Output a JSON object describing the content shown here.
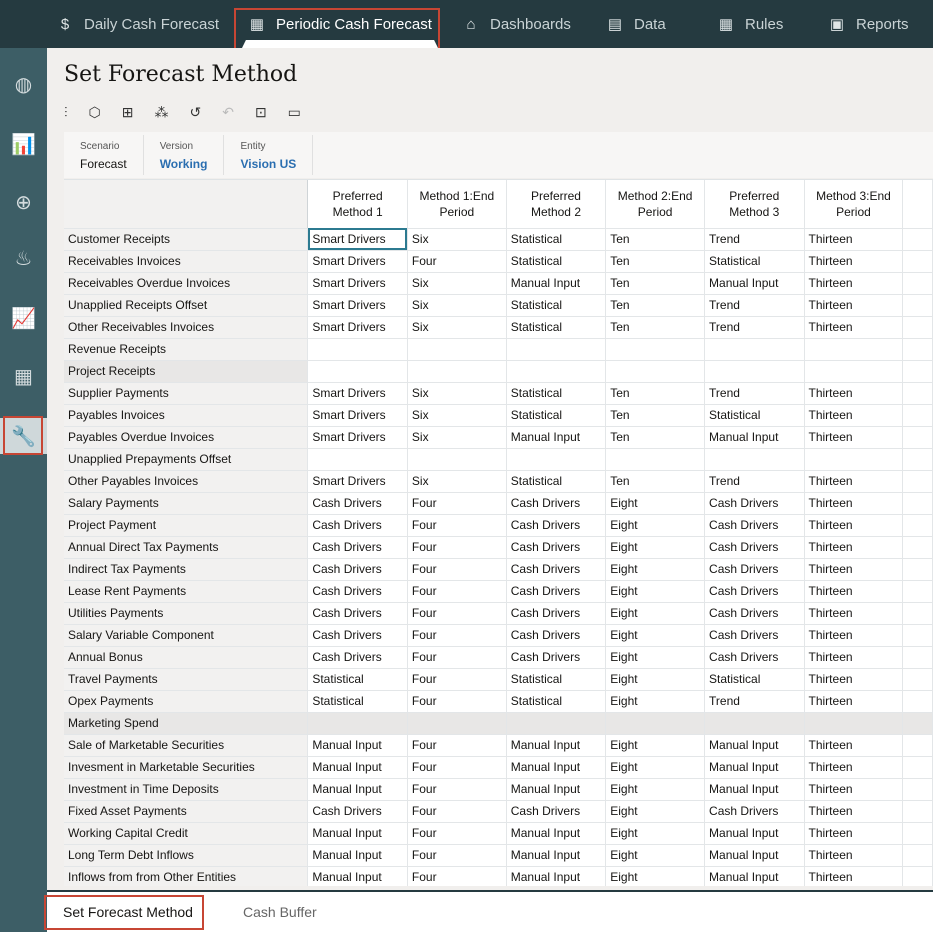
{
  "nav": [
    {
      "label": "Daily Cash Forecast",
      "icon": "dollar-cycle-icon"
    },
    {
      "label": "Periodic Cash Forecast",
      "icon": "calendar-dollar-icon",
      "active": true
    },
    {
      "label": "Dashboards",
      "icon": "monitor-chart-icon"
    },
    {
      "label": "Data",
      "icon": "list-icon"
    },
    {
      "label": "Rules",
      "icon": "calculator-icon"
    },
    {
      "label": "Reports",
      "icon": "report-icon"
    }
  ],
  "sidebar": [
    "globe-dollar-icon",
    "bar-chart-icon",
    "target-icon",
    "hand-money-icon",
    "line-chart-icon",
    "grid-icon",
    "wrench-settings-icon"
  ],
  "page_title": "Set Forecast Method",
  "toolbar": [
    "sliders-icon",
    "cube-icon",
    "comment-add-icon",
    "hierarchy-icon",
    "history-icon",
    "undo-icon",
    "cell-grid-icon",
    "panel-icon"
  ],
  "pov": [
    {
      "label": "Scenario",
      "value": "Forecast"
    },
    {
      "label": "Version",
      "value": "Working"
    },
    {
      "label": "Entity",
      "value": "Vision US"
    }
  ],
  "columns": [
    "Preferred Method 1",
    "Method 1:End Period",
    "Preferred Method 2",
    "Method 2:End Period",
    "Preferred Method 3",
    "Method 3:End Period"
  ],
  "rows": [
    [
      "Customer Receipts",
      "Smart Drivers",
      "Six",
      "Statistical",
      "Ten",
      "Trend",
      "Thirteen"
    ],
    [
      "Receivables Invoices",
      "Smart Drivers",
      "Four",
      "Statistical",
      "Ten",
      "Statistical",
      "Thirteen"
    ],
    [
      "Receivables Overdue Invoices",
      "Smart Drivers",
      "Six",
      "Manual Input",
      "Ten",
      "Manual Input",
      "Thirteen"
    ],
    [
      "Unapplied Receipts Offset",
      "Smart Drivers",
      "Six",
      "Statistical",
      "Ten",
      "Trend",
      "Thirteen"
    ],
    [
      "Other Receivables Invoices",
      "Smart Drivers",
      "Six",
      "Statistical",
      "Ten",
      "Trend",
      "Thirteen"
    ],
    [
      "Revenue Receipts",
      "",
      "",
      "",
      "",
      "",
      ""
    ],
    [
      "Project Receipts",
      "",
      "",
      "",
      "",
      "",
      ""
    ],
    [
      "Supplier Payments",
      "Smart Drivers",
      "Six",
      "Statistical",
      "Ten",
      "Trend",
      "Thirteen"
    ],
    [
      "Payables Invoices",
      "Smart Drivers",
      "Six",
      "Statistical",
      "Ten",
      "Statistical",
      "Thirteen"
    ],
    [
      "Payables Overdue Invoices",
      "Smart Drivers",
      "Six",
      "Manual Input",
      "Ten",
      "Manual Input",
      "Thirteen"
    ],
    [
      "Unapplied Prepayments Offset",
      "",
      "",
      "",
      "",
      "",
      ""
    ],
    [
      "Other Payables Invoices",
      "Smart Drivers",
      "Six",
      "Statistical",
      "Ten",
      "Trend",
      "Thirteen"
    ],
    [
      "Salary Payments",
      "Cash Drivers",
      "Four",
      "Cash Drivers",
      "Eight",
      "Cash Drivers",
      "Thirteen"
    ],
    [
      "Project Payment",
      "Cash Drivers",
      "Four",
      "Cash Drivers",
      "Eight",
      "Cash Drivers",
      "Thirteen"
    ],
    [
      "Annual Direct Tax Payments",
      "Cash Drivers",
      "Four",
      "Cash Drivers",
      "Eight",
      "Cash Drivers",
      "Thirteen"
    ],
    [
      "Indirect Tax Payments",
      "Cash Drivers",
      "Four",
      "Cash Drivers",
      "Eight",
      "Cash Drivers",
      "Thirteen"
    ],
    [
      "Lease Rent Payments",
      "Cash Drivers",
      "Four",
      "Cash Drivers",
      "Eight",
      "Cash Drivers",
      "Thirteen"
    ],
    [
      "Utilities Payments",
      "Cash Drivers",
      "Four",
      "Cash Drivers",
      "Eight",
      "Cash Drivers",
      "Thirteen"
    ],
    [
      "Salary Variable Component",
      "Cash Drivers",
      "Four",
      "Cash Drivers",
      "Eight",
      "Cash Drivers",
      "Thirteen"
    ],
    [
      "Annual Bonus",
      "Cash Drivers",
      "Four",
      "Cash Drivers",
      "Eight",
      "Cash Drivers",
      "Thirteen"
    ],
    [
      "Travel Payments",
      "Statistical",
      "Four",
      "Statistical",
      "Eight",
      "Statistical",
      "Thirteen"
    ],
    [
      "Opex Payments",
      "Statistical",
      "Four",
      "Statistical",
      "Eight",
      "Trend",
      "Thirteen"
    ],
    [
      "Marketing Spend",
      "",
      "",
      "",
      "",
      "",
      ""
    ],
    [
      "Sale of Marketable Securities",
      "Manual Input",
      "Four",
      "Manual Input",
      "Eight",
      "Manual Input",
      "Thirteen"
    ],
    [
      "Invesment in Marketable Securities",
      "Manual Input",
      "Four",
      "Manual Input",
      "Eight",
      "Manual Input",
      "Thirteen"
    ],
    [
      "Investment in Time Deposits",
      "Manual Input",
      "Four",
      "Manual Input",
      "Eight",
      "Manual Input",
      "Thirteen"
    ],
    [
      "Fixed Asset Payments",
      "Cash Drivers",
      "Four",
      "Cash Drivers",
      "Eight",
      "Cash Drivers",
      "Thirteen"
    ],
    [
      "Working Capital Credit",
      "Manual Input",
      "Four",
      "Manual Input",
      "Eight",
      "Manual Input",
      "Thirteen"
    ],
    [
      "Long Term Debt Inflows",
      "Manual Input",
      "Four",
      "Manual Input",
      "Eight",
      "Manual Input",
      "Thirteen"
    ],
    [
      "Inflows from from Other Entities",
      "Manual Input",
      "Four",
      "Manual Input",
      "Eight",
      "Manual Input",
      "Thirteen"
    ]
  ],
  "bottom_tabs": [
    {
      "label": "Set Forecast Method",
      "active": true
    },
    {
      "label": "Cash Buffer"
    }
  ],
  "colors": {
    "topbar": "#253a40",
    "sidebar": "#3d5e66",
    "highlight": "#c74634",
    "link": "#2a6eb0"
  }
}
